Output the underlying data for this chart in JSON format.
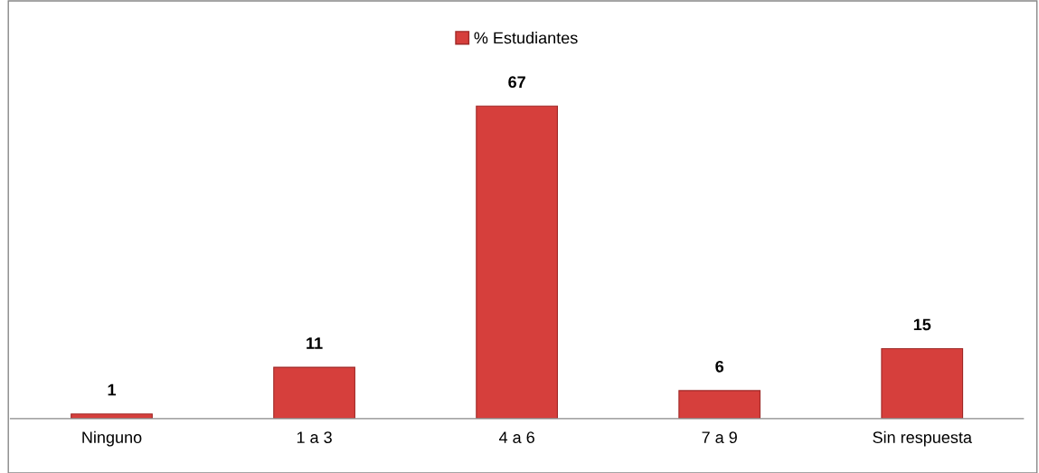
{
  "chart_data": {
    "type": "bar",
    "categories": [
      "Ninguno",
      "1 a 3",
      "4 a 6",
      "7 a 9",
      "Sin respuesta"
    ],
    "series": [
      {
        "name": "% Estudiantes",
        "color": "#d63f3c",
        "values": [
          1,
          11,
          67,
          6,
          15
        ]
      }
    ],
    "data_labels": true,
    "legend": "top",
    "grid": false
  }
}
